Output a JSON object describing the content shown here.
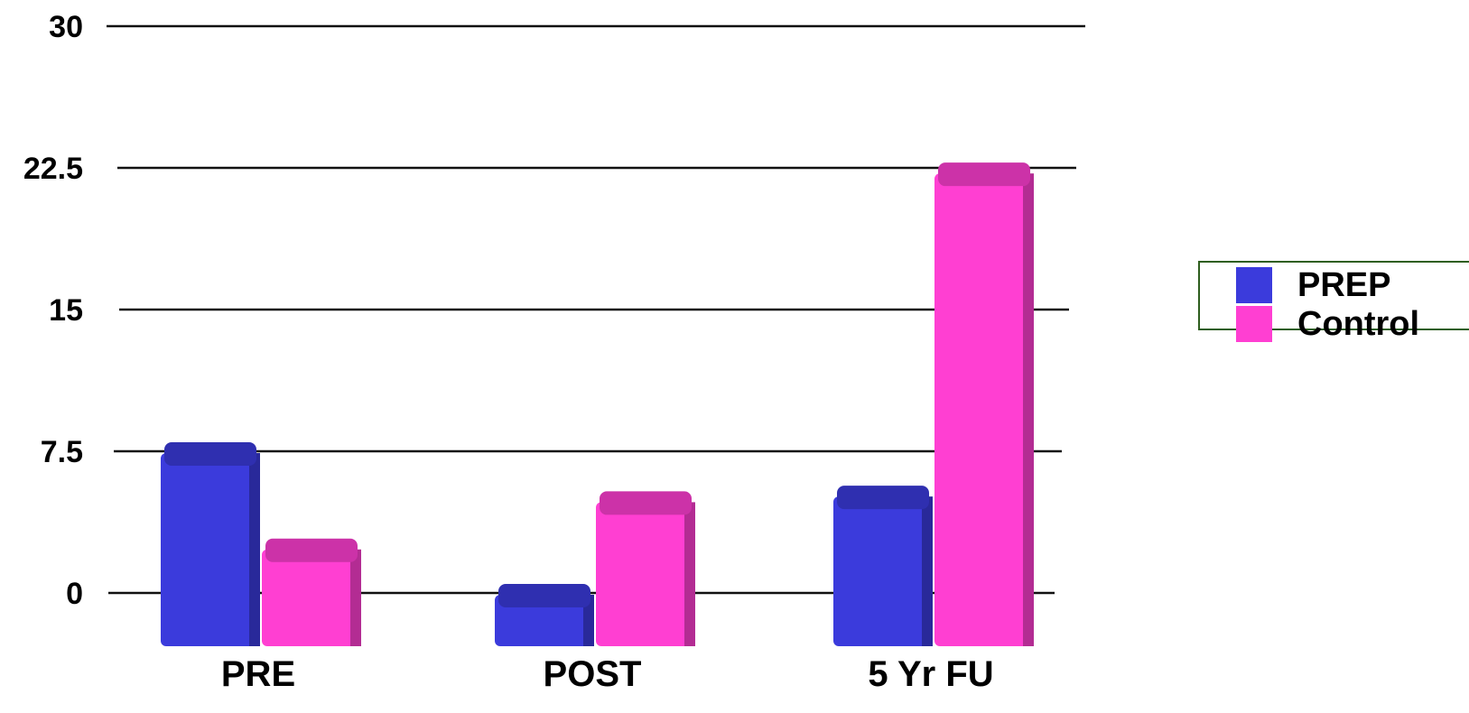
{
  "chart_data": {
    "type": "bar",
    "categories": [
      "PRE",
      "POST",
      "5 Yr FU"
    ],
    "series": [
      {
        "name": "PREP",
        "values": [
          7.5,
          0,
          5.2
        ],
        "color": "#3b3bdc"
      },
      {
        "name": "Control",
        "values": [
          2.4,
          4.9,
          22.3
        ],
        "color": "#ff3fd2"
      }
    ],
    "yticks": [
      "0",
      "7.5",
      "15",
      "22.5",
      "30"
    ],
    "ylim": [
      0,
      30
    ],
    "grid": true,
    "legend_position": "right",
    "title": "",
    "xlabel": "",
    "ylabel": ""
  },
  "legend": {
    "items": [
      {
        "label": "PREP",
        "color": "#3b3bdc"
      },
      {
        "label": "Control",
        "color": "#ff3fd2"
      }
    ]
  }
}
